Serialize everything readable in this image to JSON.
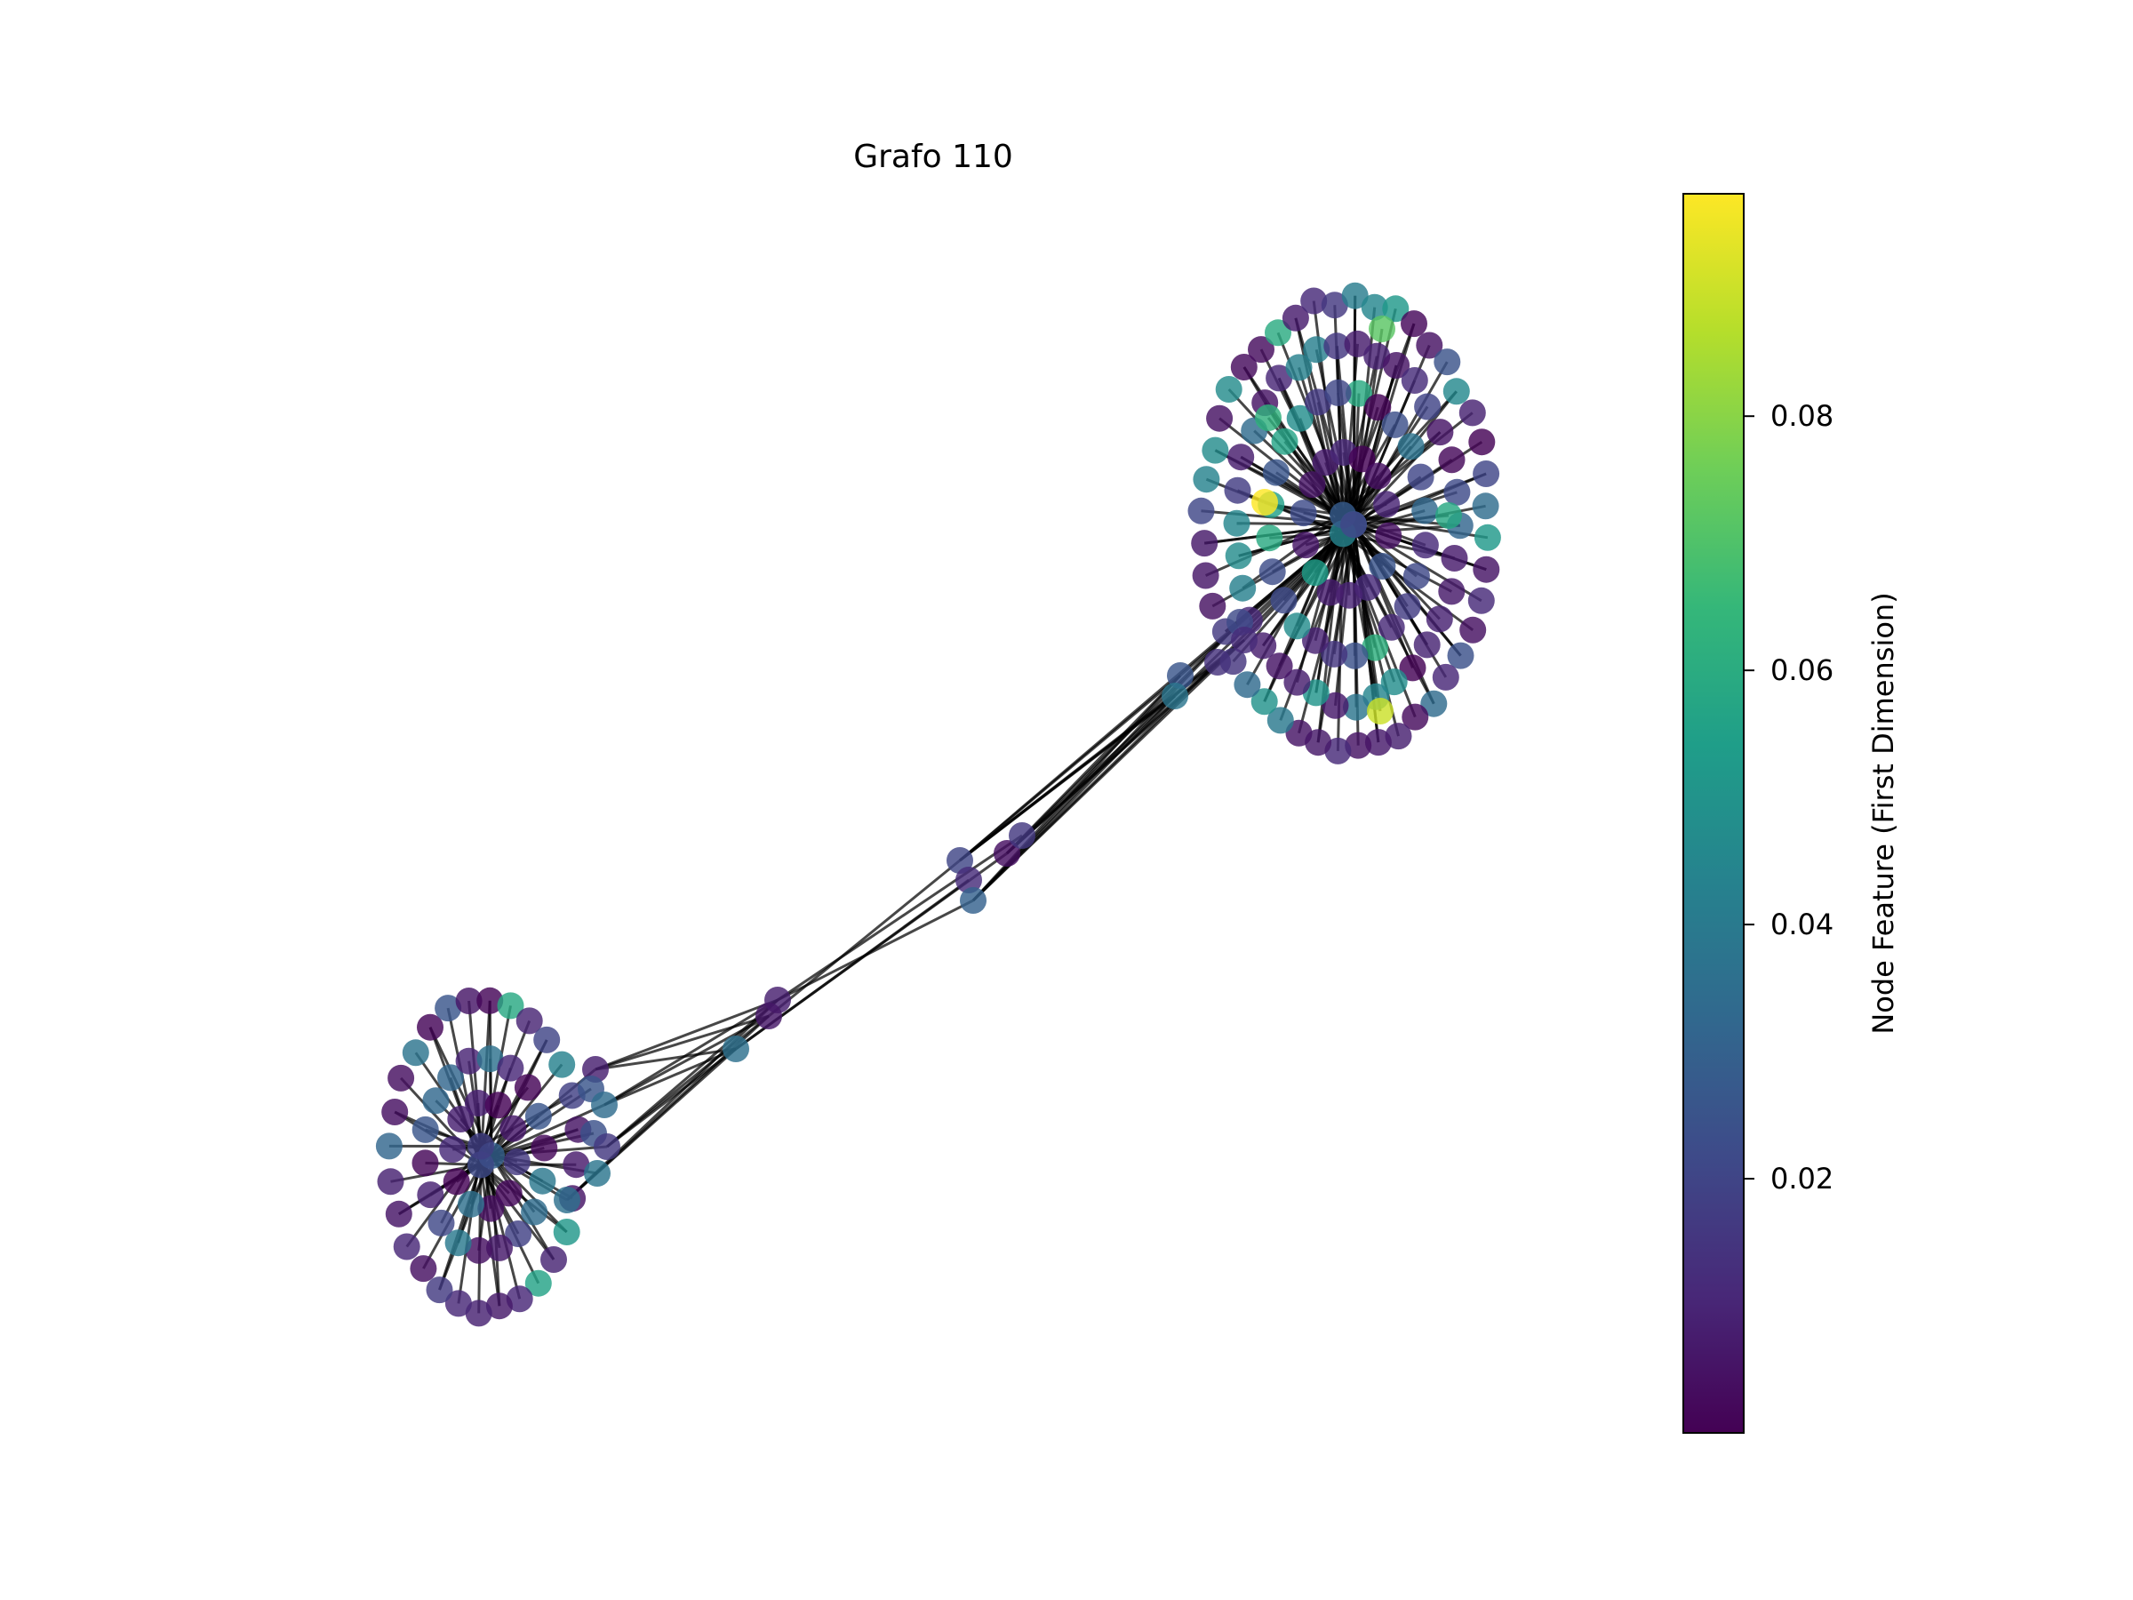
{
  "figure": {
    "title": "Grafo 110"
  },
  "colorbar": {
    "label": "Node Feature (First Dimension)",
    "colormap": "viridis",
    "min": 0.0,
    "max": 0.0975,
    "ticks": [
      {
        "value": 0.02,
        "label": "0.02"
      },
      {
        "value": 0.04,
        "label": "0.04"
      },
      {
        "value": 0.06,
        "label": "0.06"
      },
      {
        "value": 0.08,
        "label": "0.08"
      }
    ],
    "stops": [
      "#440154",
      "#482878",
      "#3e4a89",
      "#31688e",
      "#26828e",
      "#1f9e89",
      "#35b779",
      "#6ece58",
      "#b5de2b",
      "#fde725"
    ]
  },
  "graph": {
    "edge_color": "#000000",
    "node_alpha": 0.82,
    "clusters": [
      {
        "name": "cluster-right",
        "hub_values": [
          0.032,
          0.044,
          0.028,
          0.02
        ],
        "rings": [
          {
            "rx": 0.3,
            "ry": 0.32,
            "count": 14
          },
          {
            "rx": 0.55,
            "ry": 0.58,
            "count": 24
          },
          {
            "rx": 0.78,
            "ry": 0.8,
            "count": 34
          },
          {
            "rx": 1.0,
            "ry": 1.0,
            "count": 44
          }
        ]
      },
      {
        "name": "cluster-left",
        "hub_values": [
          0.03,
          0.022,
          0.018
        ],
        "rings": [
          {
            "rx": 0.35,
            "ry": 0.35,
            "count": 10
          },
          {
            "rx": 0.65,
            "ry": 0.62,
            "count": 18
          },
          {
            "rx": 1.0,
            "ry": 1.0,
            "count": 28
          }
        ]
      }
    ],
    "bridge_values": [
      0.022,
      0.014,
      0.026,
      0.038,
      0.012,
      0.004,
      0.016,
      0.02,
      0.012,
      0.03,
      0.008,
      0.006,
      0.036,
      0.008,
      0.026,
      0.034,
      0.024,
      0.016,
      0.038,
      0.036
    ],
    "highlight_values": [
      0.0975,
      0.09,
      0.072,
      0.062,
      0.058
    ]
  }
}
